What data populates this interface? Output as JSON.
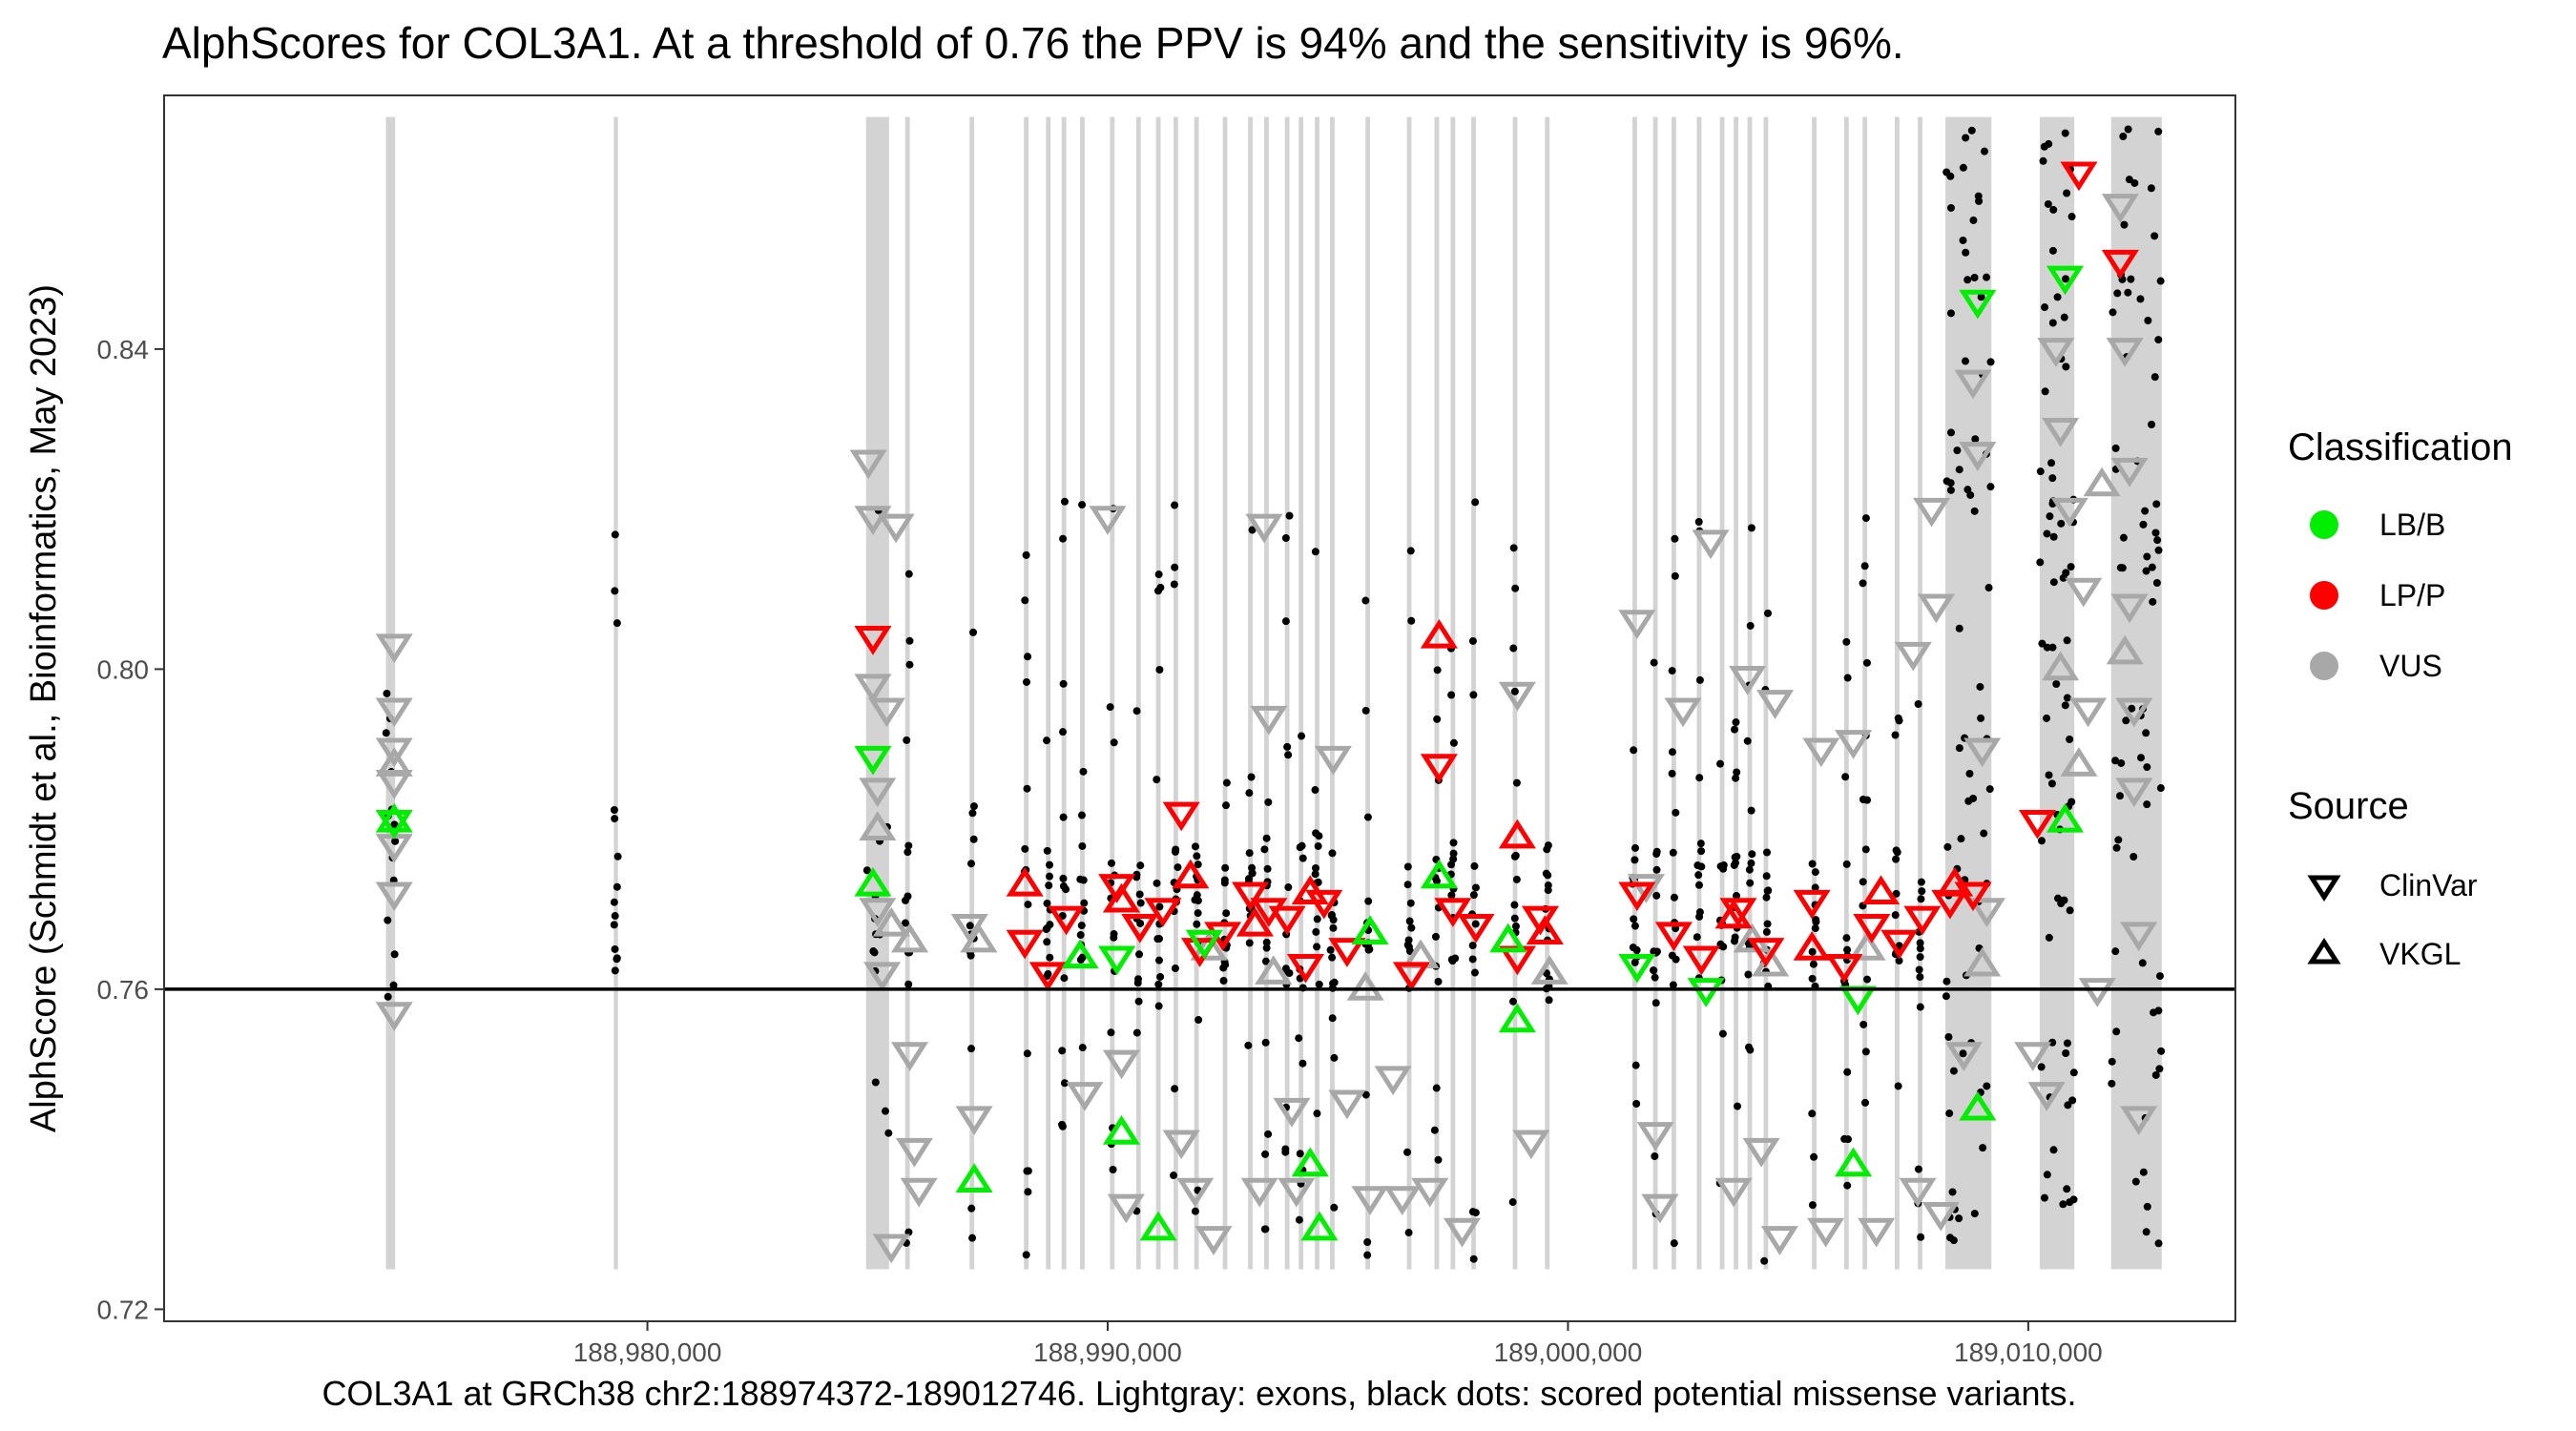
{
  "title": "AlphScores for COL3A1. At a threshold of 0.76 the PPV is 94% and the sensitivity is 96%.",
  "colors": {
    "lb_b": "#00ee00",
    "lp_p": "#ff0000",
    "vus": "#a8a8a8",
    "exon": "#d3d3d3",
    "dot": "#000000",
    "threshold": "#000000"
  },
  "chart_data": {
    "type": "scatter",
    "title": "AlphScores for COL3A1. At a threshold of 0.76 the PPV is 94% and the sensitivity is 96%.",
    "xlabel": "COL3A1 at GRCh38 chr2:188974372-189012746. Lightgray: exons, black dots: scored potential missense variants.",
    "ylabel": "AlphScore (Schmidt et al., Bioinformatics, May 2023)",
    "xlim": [
      188969500,
      189014500
    ],
    "ylim": [
      0.7185,
      0.8717
    ],
    "x_ticks": [
      188980000,
      188990000,
      189000000,
      189010000
    ],
    "x_tick_labels": [
      "188,980,000",
      "188,990,000",
      "189,000,000",
      "189,010,000"
    ],
    "y_ticks": [
      0.72,
      0.76,
      0.8,
      0.84
    ],
    "y_tick_labels": [
      "0.72",
      "0.76",
      "0.80",
      "0.84"
    ],
    "threshold": 0.76,
    "grid": false,
    "exons": [
      [
        188974320,
        188974520
      ],
      [
        188979270,
        188979360
      ],
      [
        188984750,
        188985250
      ],
      [
        188985600,
        188985700
      ],
      [
        188987000,
        188987100
      ],
      [
        188988180,
        188988280
      ],
      [
        188988660,
        188988760
      ],
      [
        188989000,
        188989100
      ],
      [
        188989400,
        188989500
      ],
      [
        188990050,
        188990150
      ],
      [
        188990620,
        188990720
      ],
      [
        188991050,
        188991150
      ],
      [
        188991430,
        188991530
      ],
      [
        188991880,
        188991980
      ],
      [
        188992500,
        188992600
      ],
      [
        188993050,
        188993150
      ],
      [
        188993400,
        188993500
      ],
      [
        188993850,
        188993950
      ],
      [
        188994150,
        188994250
      ],
      [
        188994500,
        188994600
      ],
      [
        188994830,
        188994930
      ],
      [
        188995600,
        188995700
      ],
      [
        188996500,
        188996600
      ],
      [
        188997100,
        188997200
      ],
      [
        188997450,
        188997550
      ],
      [
        188997900,
        188998000
      ],
      [
        188998800,
        188998900
      ],
      [
        188999500,
        188999600
      ],
      [
        189001400,
        189001500
      ],
      [
        189001850,
        189001950
      ],
      [
        189002250,
        189002350
      ],
      [
        189002800,
        189002900
      ],
      [
        189003300,
        189003400
      ],
      [
        189003600,
        189003700
      ],
      [
        189003900,
        189004000
      ],
      [
        189004250,
        189004350
      ],
      [
        189005300,
        189005400
      ],
      [
        189006000,
        189006100
      ],
      [
        189006400,
        189006500
      ],
      [
        189007100,
        189007200
      ],
      [
        189007600,
        189007700
      ],
      [
        189008200,
        189009200
      ],
      [
        189010250,
        189011000
      ],
      [
        189011800,
        189012900
      ]
    ],
    "series": [
      {
        "name": "LB/B",
        "source": "ClinVar",
        "marker": "triangle-down",
        "points": [
          [
            188974500,
            0.781
          ],
          [
            188984900,
            0.789
          ],
          [
            189001500,
            0.763
          ],
          [
            189003000,
            0.76
          ],
          [
            189006300,
            0.759
          ],
          [
            189008900,
            0.846
          ],
          [
            189010800,
            0.849
          ],
          [
            188990200,
            0.764
          ],
          [
            188992100,
            0.766
          ]
        ]
      },
      {
        "name": "LB/B",
        "source": "VKGL",
        "marker": "triangle-up",
        "points": [
          [
            188974500,
            0.781
          ],
          [
            188984900,
            0.773
          ],
          [
            188987100,
            0.736
          ],
          [
            188989400,
            0.764
          ],
          [
            188990300,
            0.742
          ],
          [
            188991100,
            0.73
          ],
          [
            188994400,
            0.738
          ],
          [
            188994600,
            0.73
          ],
          [
            188995700,
            0.767
          ],
          [
            188997200,
            0.774
          ],
          [
            188998700,
            0.766
          ],
          [
            188998900,
            0.756
          ],
          [
            189006200,
            0.738
          ],
          [
            189008900,
            0.745
          ],
          [
            189010800,
            0.781
          ]
        ]
      },
      {
        "name": "LP/P",
        "source": "ClinVar",
        "marker": "triangle-down",
        "points": [
          [
            188984900,
            0.804
          ],
          [
            188988200,
            0.766
          ],
          [
            188988700,
            0.762
          ],
          [
            188989100,
            0.769
          ],
          [
            188990200,
            0.773
          ],
          [
            188990700,
            0.768
          ],
          [
            188991200,
            0.77
          ],
          [
            188991600,
            0.782
          ],
          [
            188992000,
            0.765
          ],
          [
            188992500,
            0.767
          ],
          [
            188993100,
            0.772
          ],
          [
            188993500,
            0.77
          ],
          [
            188993900,
            0.769
          ],
          [
            188994300,
            0.763
          ],
          [
            188994700,
            0.771
          ],
          [
            188995200,
            0.765
          ],
          [
            188996600,
            0.762
          ],
          [
            188997200,
            0.788
          ],
          [
            188997500,
            0.77
          ],
          [
            188998000,
            0.768
          ],
          [
            188998900,
            0.764
          ],
          [
            188999400,
            0.769
          ],
          [
            189001500,
            0.772
          ],
          [
            189002300,
            0.767
          ],
          [
            189002900,
            0.764
          ],
          [
            189003700,
            0.77
          ],
          [
            189004300,
            0.765
          ],
          [
            189005300,
            0.771
          ],
          [
            189006000,
            0.763
          ],
          [
            189006600,
            0.768
          ],
          [
            189007200,
            0.766
          ],
          [
            189007700,
            0.769
          ],
          [
            189008300,
            0.771
          ],
          [
            189008800,
            0.772
          ],
          [
            189010200,
            0.781
          ],
          [
            189011100,
            0.862
          ],
          [
            189012000,
            0.851
          ]
        ]
      },
      {
        "name": "LP/P",
        "source": "VKGL",
        "marker": "triangle-up",
        "points": [
          [
            188988200,
            0.773
          ],
          [
            188990300,
            0.771
          ],
          [
            188991800,
            0.774
          ],
          [
            188993200,
            0.768
          ],
          [
            188994400,
            0.772
          ],
          [
            188997200,
            0.804
          ],
          [
            188998900,
            0.779
          ],
          [
            188999500,
            0.767
          ],
          [
            189003600,
            0.769
          ],
          [
            189005300,
            0.765
          ],
          [
            189006800,
            0.772
          ],
          [
            189008400,
            0.773
          ]
        ]
      },
      {
        "name": "VUS",
        "source": "ClinVar",
        "marker": "triangle-down",
        "points": [
          [
            188974500,
            0.803
          ],
          [
            188974500,
            0.795
          ],
          [
            188974500,
            0.79
          ],
          [
            188974500,
            0.786
          ],
          [
            188974500,
            0.778
          ],
          [
            188974500,
            0.772
          ],
          [
            188974500,
            0.757
          ],
          [
            188984800,
            0.826
          ],
          [
            188984900,
            0.819
          ],
          [
            188984900,
            0.798
          ],
          [
            188985000,
            0.785
          ],
          [
            188985000,
            0.77
          ],
          [
            188985100,
            0.762
          ],
          [
            188985200,
            0.795
          ],
          [
            188985400,
            0.818
          ],
          [
            188985300,
            0.728
          ],
          [
            188985700,
            0.752
          ],
          [
            188985800,
            0.74
          ],
          [
            188985900,
            0.735
          ],
          [
            188987000,
            0.768
          ],
          [
            188987100,
            0.744
          ],
          [
            188989500,
            0.747
          ],
          [
            188990000,
            0.819
          ],
          [
            188990300,
            0.751
          ],
          [
            188990400,
            0.733
          ],
          [
            188991600,
            0.741
          ],
          [
            188991900,
            0.735
          ],
          [
            188992300,
            0.729
          ],
          [
            188993300,
            0.735
          ],
          [
            188993400,
            0.818
          ],
          [
            188993500,
            0.794
          ],
          [
            188994000,
            0.745
          ],
          [
            188994100,
            0.735
          ],
          [
            188994900,
            0.789
          ],
          [
            188995200,
            0.746
          ],
          [
            188995700,
            0.734
          ],
          [
            188996200,
            0.749
          ],
          [
            188996400,
            0.734
          ],
          [
            188997000,
            0.735
          ],
          [
            188997700,
            0.73
          ],
          [
            188998900,
            0.797
          ],
          [
            188999200,
            0.741
          ],
          [
            189001500,
            0.806
          ],
          [
            189001700,
            0.773
          ],
          [
            189001900,
            0.742
          ],
          [
            189002000,
            0.733
          ],
          [
            189002500,
            0.795
          ],
          [
            189003100,
            0.816
          ],
          [
            189003600,
            0.735
          ],
          [
            189003900,
            0.799
          ],
          [
            189004200,
            0.74
          ],
          [
            189004500,
            0.796
          ],
          [
            189004600,
            0.729
          ],
          [
            189005500,
            0.79
          ],
          [
            189005600,
            0.73
          ],
          [
            189006200,
            0.791
          ],
          [
            189006700,
            0.73
          ],
          [
            189007500,
            0.802
          ],
          [
            189007600,
            0.735
          ],
          [
            189007900,
            0.82
          ],
          [
            189008000,
            0.808
          ],
          [
            189008100,
            0.732
          ],
          [
            189008600,
            0.752
          ],
          [
            189008800,
            0.836
          ],
          [
            189008900,
            0.827
          ],
          [
            189009000,
            0.79
          ],
          [
            189009100,
            0.77
          ],
          [
            189010100,
            0.752
          ],
          [
            189010400,
            0.747
          ],
          [
            189010600,
            0.84
          ],
          [
            189010700,
            0.83
          ],
          [
            189010900,
            0.82
          ],
          [
            189011200,
            0.81
          ],
          [
            189011300,
            0.795
          ],
          [
            189011500,
            0.76
          ],
          [
            189012000,
            0.858
          ],
          [
            189012100,
            0.84
          ],
          [
            189012200,
            0.825
          ],
          [
            189012200,
            0.808
          ],
          [
            189012300,
            0.795
          ],
          [
            189012300,
            0.785
          ],
          [
            189012400,
            0.767
          ],
          [
            189012400,
            0.744
          ]
        ]
      },
      {
        "name": "VUS",
        "source": "VKGL",
        "marker": "triangle-up",
        "points": [
          [
            188974500,
            0.788
          ],
          [
            188985000,
            0.78
          ],
          [
            188985300,
            0.768
          ],
          [
            188985700,
            0.766
          ],
          [
            188987200,
            0.766
          ],
          [
            188992200,
            0.765
          ],
          [
            188993600,
            0.762
          ],
          [
            188995600,
            0.76
          ],
          [
            188996800,
            0.764
          ],
          [
            188999600,
            0.762
          ],
          [
            189004000,
            0.766
          ],
          [
            189004400,
            0.763
          ],
          [
            189006500,
            0.765
          ],
          [
            189009000,
            0.763
          ],
          [
            189010700,
            0.8
          ],
          [
            189011100,
            0.788
          ],
          [
            189011600,
            0.823
          ],
          [
            189012100,
            0.802
          ]
        ]
      }
    ],
    "missense_dots": {
      "description_hidden": true
    }
  },
  "legend": {
    "classification_title": "Classification",
    "classification_items": [
      "LB/B",
      "LP/P",
      "VUS"
    ],
    "source_title": "Source",
    "source_items": [
      "ClinVar",
      "VKGL"
    ]
  }
}
